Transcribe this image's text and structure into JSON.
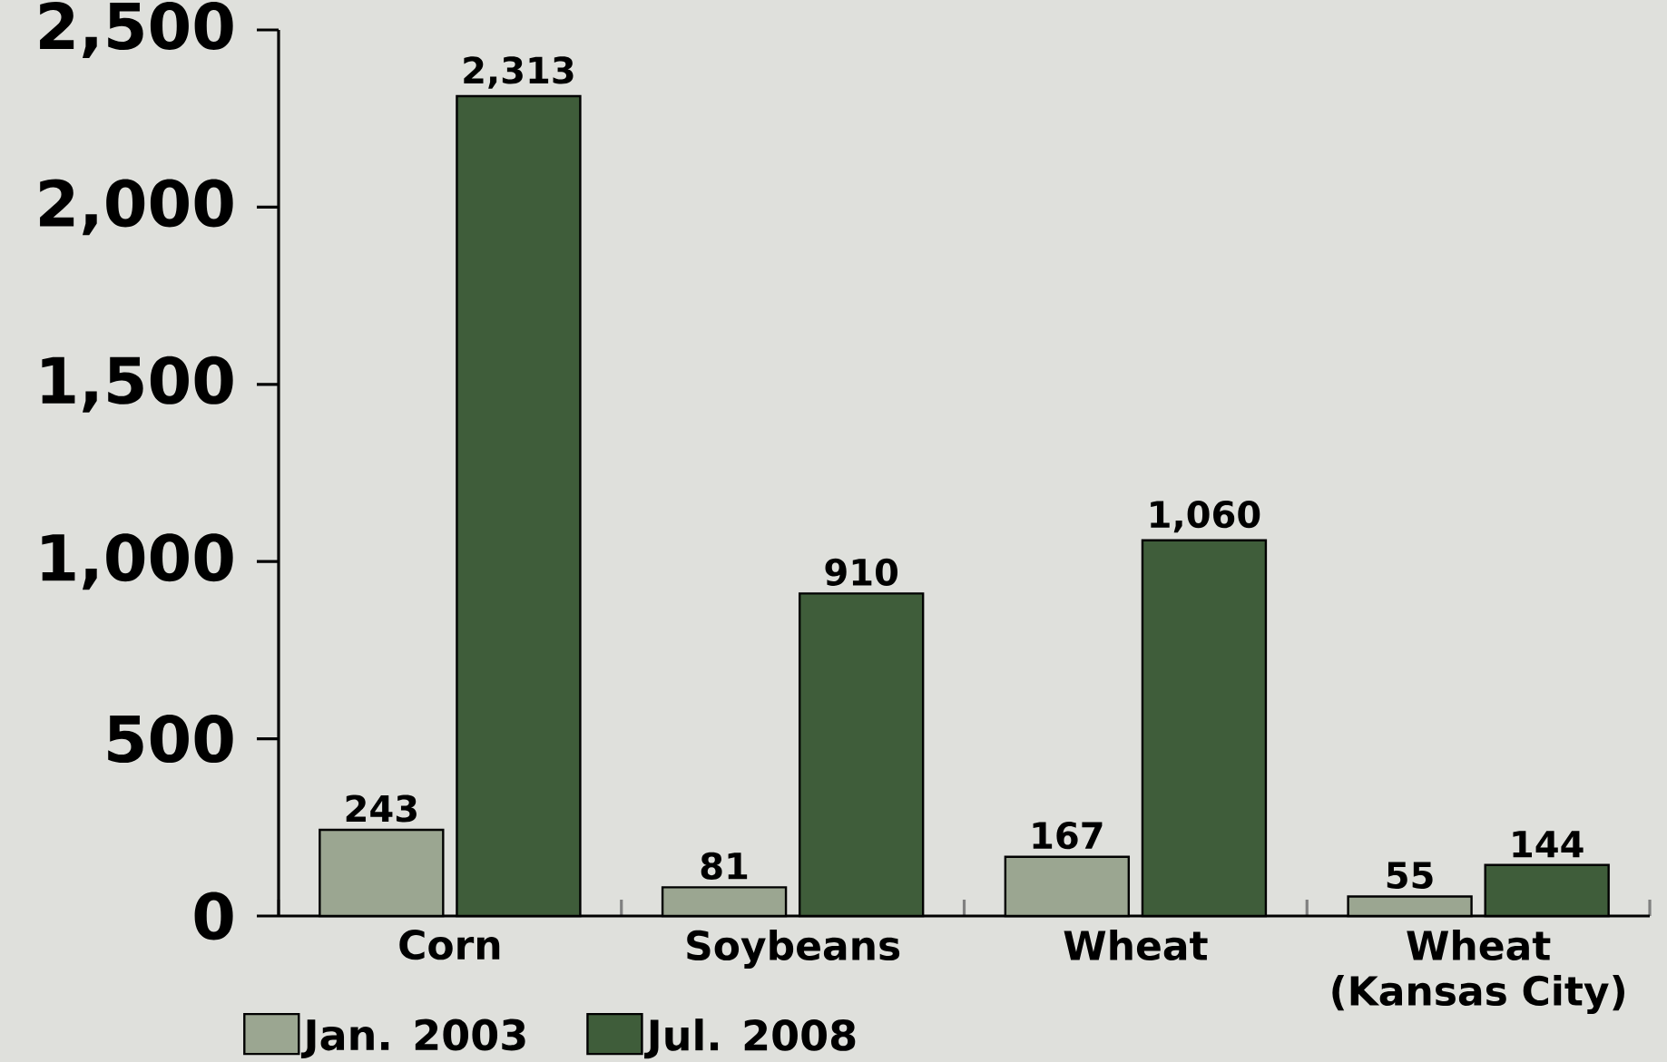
{
  "chart_data": {
    "type": "bar",
    "categories": [
      "Corn",
      "Soybeans",
      "Wheat",
      "Wheat (Kansas City)"
    ],
    "series": [
      {
        "name": "Jan. 2003",
        "color": "#9ba691",
        "values": [
          243,
          81,
          167,
          55
        ],
        "value_labels": [
          "243",
          "81",
          "167",
          "55"
        ]
      },
      {
        "name": "Jul. 2008",
        "color": "#3f5d3a",
        "values": [
          2313,
          910,
          1060,
          144
        ],
        "value_labels": [
          "2,313",
          "910",
          "1,060",
          "144"
        ]
      }
    ],
    "ylim": [
      0,
      2500
    ],
    "yticks": [
      0,
      500,
      {
        "value": 1000,
        "label": "1,000"
      },
      {
        "value": 1500,
        "label": "1,500"
      },
      {
        "value": 2000,
        "label": "2,000"
      },
      {
        "value": 2500,
        "label": "2,500"
      }
    ],
    "legend": "bottom left"
  }
}
